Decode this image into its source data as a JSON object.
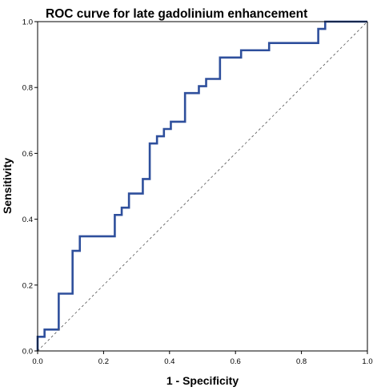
{
  "chart_data": {
    "type": "line",
    "title": "ROC curve for late gadolinium enhancement",
    "xlabel": "1 - Specificity",
    "ylabel": "Sensitivity",
    "xlim": [
      0,
      1
    ],
    "ylim": [
      0,
      1
    ],
    "x_ticks": [
      "0.0",
      "0.2",
      "0.4",
      "0.6",
      "0.8",
      "1.0"
    ],
    "y_ticks": [
      "0.0",
      "0.2",
      "0.4",
      "0.6",
      "0.8",
      "1.0"
    ],
    "grid": false,
    "legend": "none",
    "colors": {
      "roc_line": "#2e4f9c",
      "reference_line": "#555555",
      "axis": "#000000"
    },
    "series": [
      {
        "style": "solid",
        "x": [
          0.0,
          0.0,
          0.021,
          0.021,
          0.064,
          0.064,
          0.106,
          0.106,
          0.128,
          0.128,
          0.234,
          0.234,
          0.255,
          0.255,
          0.277,
          0.277,
          0.319,
          0.319,
          0.34,
          0.34,
          0.362,
          0.362,
          0.383,
          0.383,
          0.404,
          0.404,
          0.447,
          0.447,
          0.489,
          0.489,
          0.511,
          0.511,
          0.553,
          0.553,
          0.617,
          0.617,
          0.702,
          0.702,
          0.851,
          0.851,
          0.872,
          0.872,
          0.915,
          0.915,
          0.936,
          1.0
        ],
        "y": [
          0.0,
          0.043,
          0.043,
          0.065,
          0.065,
          0.174,
          0.174,
          0.304,
          0.304,
          0.348,
          0.348,
          0.413,
          0.413,
          0.435,
          0.435,
          0.478,
          0.478,
          0.522,
          0.522,
          0.63,
          0.63,
          0.652,
          0.652,
          0.674,
          0.674,
          0.696,
          0.696,
          0.783,
          0.783,
          0.804,
          0.804,
          0.826,
          0.826,
          0.891,
          0.891,
          0.913,
          0.913,
          0.935,
          0.935,
          0.978,
          0.978,
          1.0,
          1.0,
          1.0,
          1.0,
          1.0
        ]
      },
      {
        "style": "dashed",
        "x": [
          0,
          1
        ],
        "y": [
          0,
          1
        ]
      }
    ]
  }
}
